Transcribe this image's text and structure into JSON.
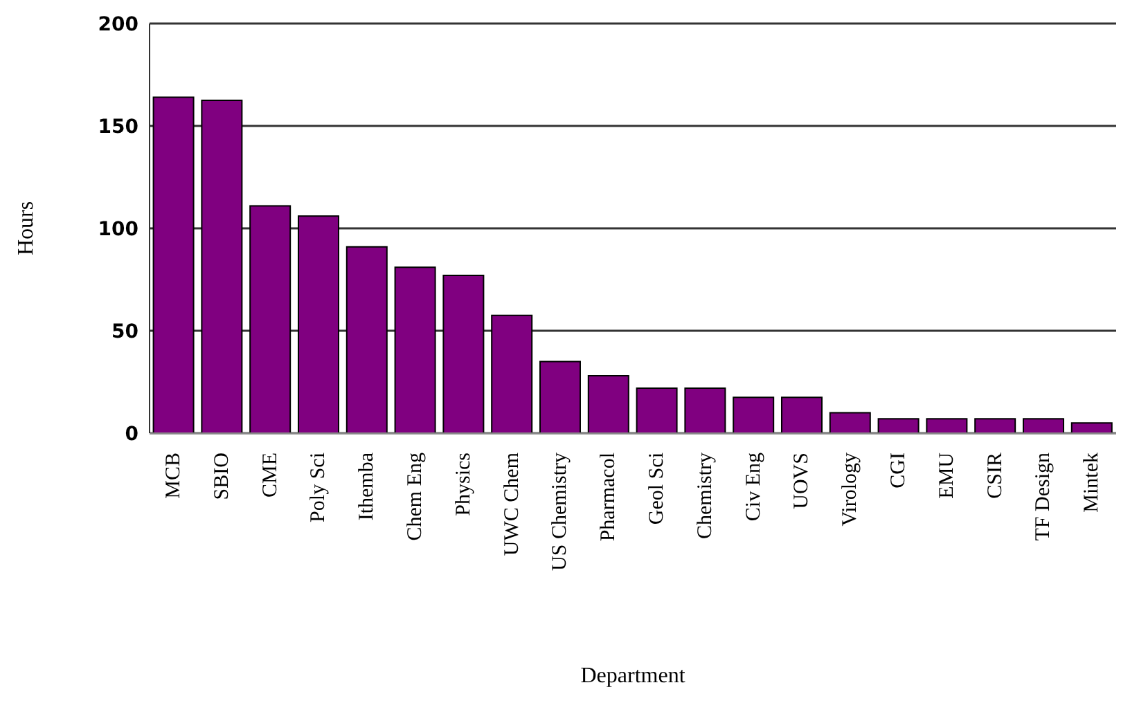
{
  "chart_data": {
    "type": "bar",
    "xlabel": "Department",
    "ylabel": "Hours",
    "categories": [
      "MCB",
      "SBIO",
      "CME",
      "Poly Sci",
      "Ithemba",
      "Chem Eng",
      "Physics",
      "UWC Chem",
      "US Chemistry",
      "Pharmacol",
      "Geol Sci",
      "Chemistry",
      "Civ Eng",
      "UOVS",
      "Virology",
      "CGI",
      "EMU",
      "CSIR",
      "TF Design",
      "Mintek"
    ],
    "values": [
      164,
      162.5,
      111,
      106,
      91,
      81,
      77,
      57.5,
      35,
      28,
      22,
      22,
      17.5,
      17.5,
      10,
      7,
      7,
      7,
      7,
      5
    ],
    "color": "#800080",
    "ylim": [
      0,
      200
    ],
    "yticks": [
      0,
      50,
      100,
      150,
      200
    ],
    "grid": "y"
  }
}
